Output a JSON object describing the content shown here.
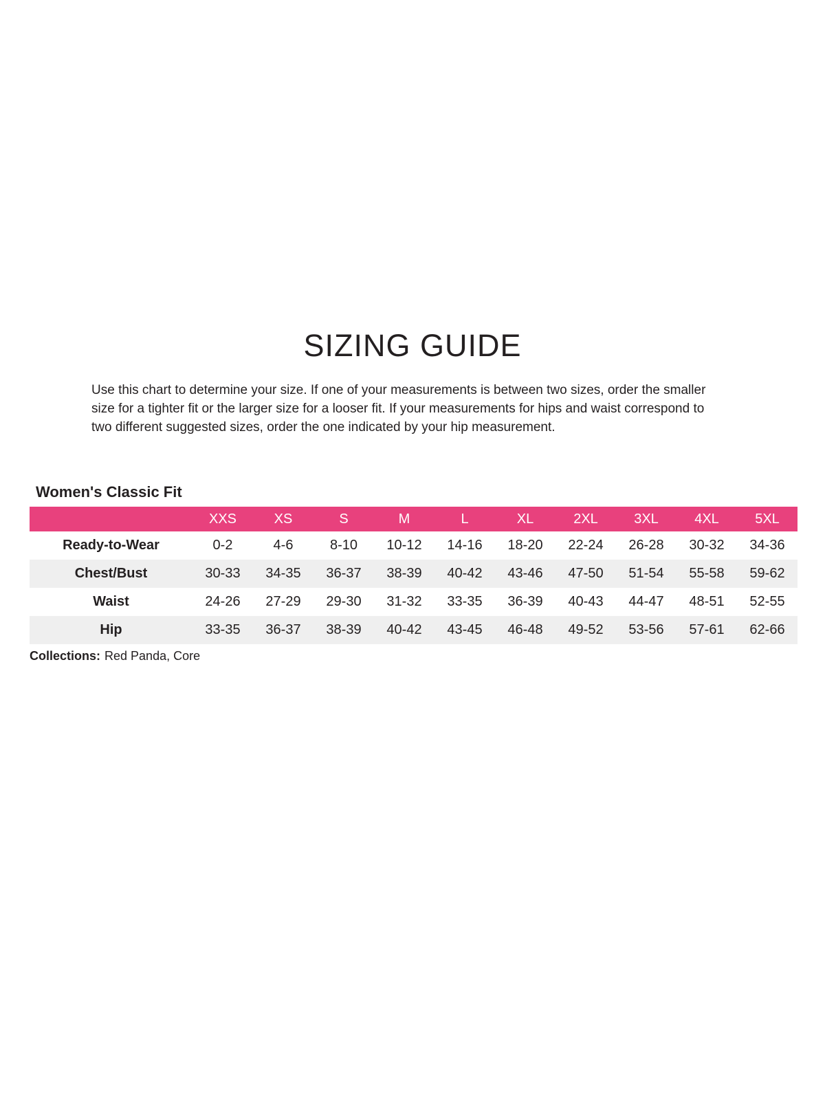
{
  "document": {
    "title": "SIZING GUIDE",
    "intro_lines": [
      "Use this chart to determine your size. If one of your measurements is between two sizes, order the smaller",
      "size for a tighter fit or the larger size for a looser fit. If your measurements for hips and waist correspond to",
      "two different suggested sizes, order the one indicated by your hip measurement."
    ],
    "section_title": "Women's Classic Fit",
    "collections": {
      "label": "Collections:",
      "value": "Red Panda, Core"
    }
  },
  "size_table": {
    "columns": [
      "XXS",
      "XS",
      "S",
      "M",
      "L",
      "XL",
      "2XL",
      "3XL",
      "4XL",
      "5XL"
    ],
    "rows": [
      {
        "label": "Ready-to-Wear",
        "values": [
          "0-2",
          "4-6",
          "8-10",
          "10-12",
          "14-16",
          "18-20",
          "22-24",
          "26-28",
          "30-32",
          "34-36"
        ]
      },
      {
        "label": "Chest/Bust",
        "values": [
          "30-33",
          "34-35",
          "36-37",
          "38-39",
          "40-42",
          "43-46",
          "47-50",
          "51-54",
          "55-58",
          "59-62"
        ]
      },
      {
        "label": "Waist",
        "values": [
          "24-26",
          "27-29",
          "29-30",
          "31-32",
          "33-35",
          "36-39",
          "40-43",
          "44-47",
          "48-51",
          "52-55"
        ]
      },
      {
        "label": "Hip",
        "values": [
          "33-35",
          "36-37",
          "38-39",
          "40-42",
          "43-45",
          "46-48",
          "49-52",
          "53-56",
          "57-61",
          "62-66"
        ]
      }
    ]
  },
  "colors": {
    "header_bg": "#E8417D",
    "header_text": "#FFFFFF",
    "alt_row_bg": "#EFEFEF",
    "text": "#231F20"
  }
}
